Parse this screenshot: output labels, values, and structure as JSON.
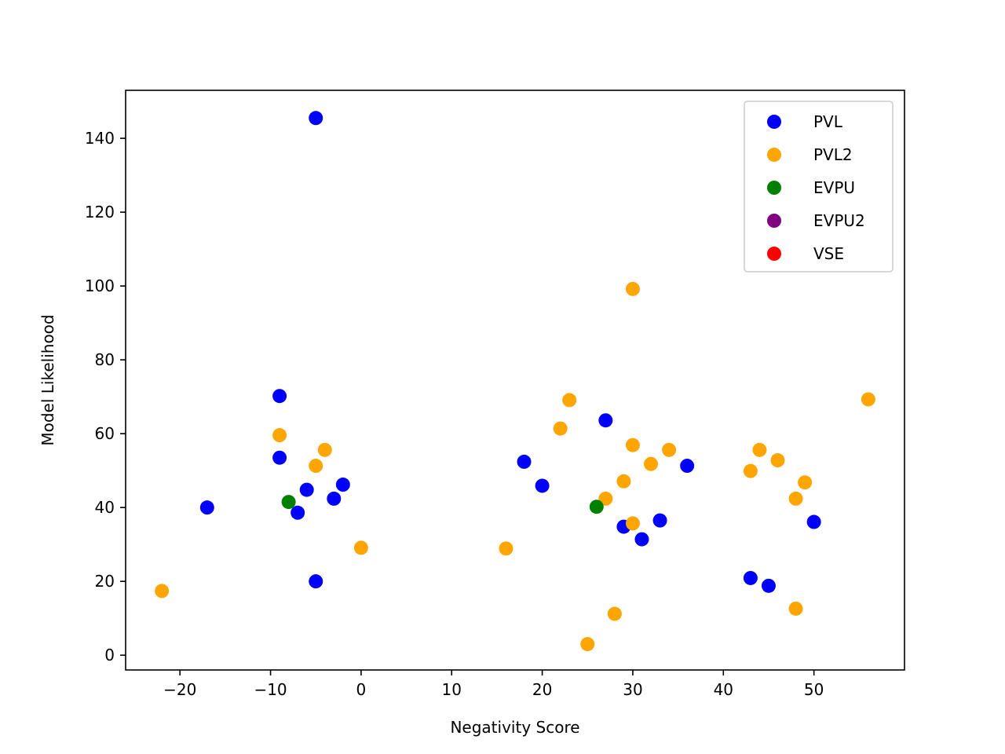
{
  "chart_data": {
    "type": "scatter",
    "title": "",
    "xlabel": "Negativity Score",
    "ylabel": "Model Likelihood",
    "xlim": [
      -26,
      60
    ],
    "ylim": [
      -4,
      153
    ],
    "xticks": [
      -20,
      -10,
      0,
      10,
      20,
      30,
      40,
      50
    ],
    "yticks": [
      0,
      20,
      40,
      60,
      80,
      100,
      120,
      140
    ],
    "xtick_labels": [
      "−20",
      "−10",
      "0",
      "10",
      "20",
      "30",
      "40",
      "50"
    ],
    "ytick_labels": [
      "0",
      "20",
      "40",
      "60",
      "80",
      "100",
      "120",
      "140"
    ],
    "grid": false,
    "legend_position": "top-right",
    "series": [
      {
        "name": "PVL",
        "color": "#0000ff",
        "points": [
          [
            -5,
            145.5
          ],
          [
            -9,
            70.2
          ],
          [
            -9,
            53.5
          ],
          [
            -17,
            40.0
          ],
          [
            -6,
            44.8
          ],
          [
            -7,
            38.6
          ],
          [
            -3,
            42.4
          ],
          [
            -2,
            46.2
          ],
          [
            -5,
            20.0
          ],
          [
            18,
            52.4
          ],
          [
            20,
            45.9
          ],
          [
            27,
            63.6
          ],
          [
            29,
            34.8
          ],
          [
            31,
            31.4
          ],
          [
            33,
            36.5
          ],
          [
            36,
            51.3
          ],
          [
            43,
            20.9
          ],
          [
            45,
            18.8
          ],
          [
            50,
            36.1
          ]
        ]
      },
      {
        "name": "PVL2",
        "color": "#ffa500",
        "points": [
          [
            -22,
            17.4
          ],
          [
            -9,
            59.6
          ],
          [
            -4,
            55.6
          ],
          [
            -5,
            51.3
          ],
          [
            0,
            29.1
          ],
          [
            16,
            28.9
          ],
          [
            22,
            61.4
          ],
          [
            23,
            69.1
          ],
          [
            25,
            3.0
          ],
          [
            27,
            42.4
          ],
          [
            28,
            11.2
          ],
          [
            29,
            47.1
          ],
          [
            30,
            56.9
          ],
          [
            30,
            35.7
          ],
          [
            30,
            99.2
          ],
          [
            32,
            51.8
          ],
          [
            34,
            55.6
          ],
          [
            43,
            49.9
          ],
          [
            44,
            55.6
          ],
          [
            46,
            52.8
          ],
          [
            48,
            42.4
          ],
          [
            48,
            12.6
          ],
          [
            49,
            46.8
          ],
          [
            56,
            69.3
          ]
        ]
      },
      {
        "name": "EVPU",
        "color": "#008000",
        "points": [
          [
            -8,
            41.5
          ],
          [
            26,
            40.2
          ]
        ]
      },
      {
        "name": "EVPU2",
        "color": "#800080",
        "points": []
      },
      {
        "name": "VSE",
        "color": "#ff0000",
        "points": []
      }
    ]
  }
}
